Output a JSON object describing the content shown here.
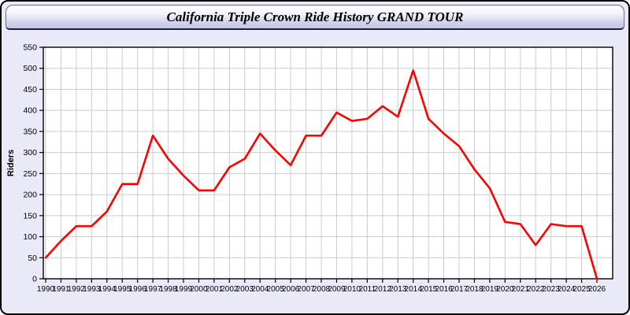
{
  "header": {
    "title": "California Triple Crown Ride History GRAND TOUR"
  },
  "chart_data": {
    "type": "line",
    "title": "California Triple Crown Ride History GRAND TOUR",
    "categories": [
      "1990",
      "1991",
      "1992",
      "1993",
      "1994",
      "1995",
      "1996",
      "1997",
      "1998",
      "1999",
      "2000",
      "2001",
      "2002",
      "2003",
      "2004",
      "2005",
      "2006",
      "2007",
      "2008",
      "2009",
      "2010",
      "2011",
      "2012",
      "2013",
      "2014",
      "2015",
      "2016",
      "2017",
      "2018",
      "2019",
      "2020",
      "2021",
      "2022",
      "2023",
      "2024",
      "2025",
      "2026"
    ],
    "values": [
      50,
      90,
      125,
      125,
      160,
      225,
      225,
      340,
      285,
      245,
      210,
      210,
      265,
      285,
      345,
      305,
      270,
      340,
      340,
      395,
      375,
      380,
      410,
      385,
      495,
      380,
      345,
      315,
      260,
      215,
      135,
      130,
      80,
      130,
      125,
      125,
      0
    ],
    "xlabel": "",
    "ylabel": "Riders",
    "ylim": [
      0,
      550
    ],
    "yticks": [
      0,
      50,
      100,
      150,
      200,
      250,
      300,
      350,
      400,
      450,
      500,
      550
    ],
    "grid": true,
    "legend": "none",
    "line_color": "#ff0000",
    "plot_bg": "#ffffff",
    "grid_color": "#cccccc",
    "axis_color": "#000000",
    "label_color": "#000000"
  }
}
